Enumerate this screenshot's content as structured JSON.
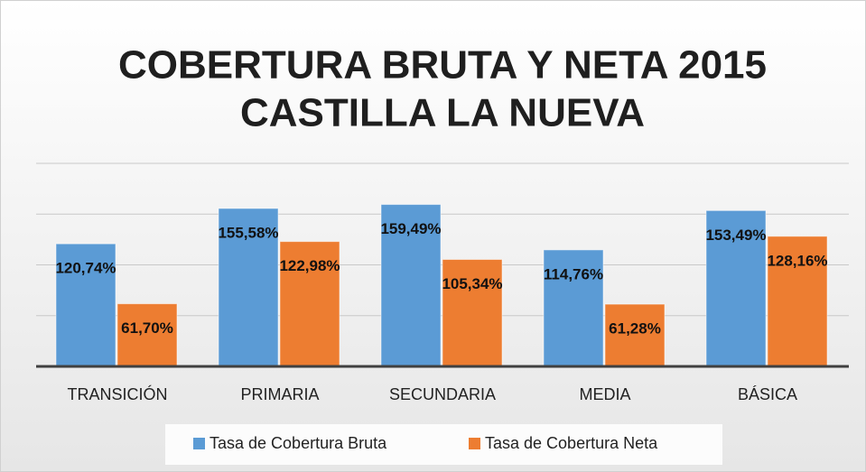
{
  "chart_data": {
    "type": "bar",
    "title": [
      "COBERTURA BRUTA Y NETA 2015",
      "CASTILLA LA NUEVA"
    ],
    "categories": [
      "TRANSICIÓN",
      "PRIMARIA",
      "SECUNDARIA",
      "MEDIA",
      "BÁSICA"
    ],
    "series": [
      {
        "name": "Tasa de Cobertura Bruta",
        "color": "#5b9bd5",
        "values": [
          120.74,
          155.58,
          159.49,
          114.76,
          153.49
        ],
        "value_labels": [
          "120,74%",
          "155,58%",
          "159,49%",
          "114,76%",
          "153,49%"
        ]
      },
      {
        "name": "Tasa de Cobertura Neta",
        "color": "#ed7d31",
        "values": [
          61.7,
          122.98,
          105.34,
          61.28,
          128.16
        ],
        "value_labels": [
          "61,70%",
          "122,98%",
          "105,34%",
          "61,28%",
          "128,16%"
        ]
      }
    ],
    "ylim": [
      0,
      200
    ],
    "yticks": [
      0,
      50,
      100,
      150,
      200
    ],
    "grid": true,
    "legend": "bottom"
  }
}
